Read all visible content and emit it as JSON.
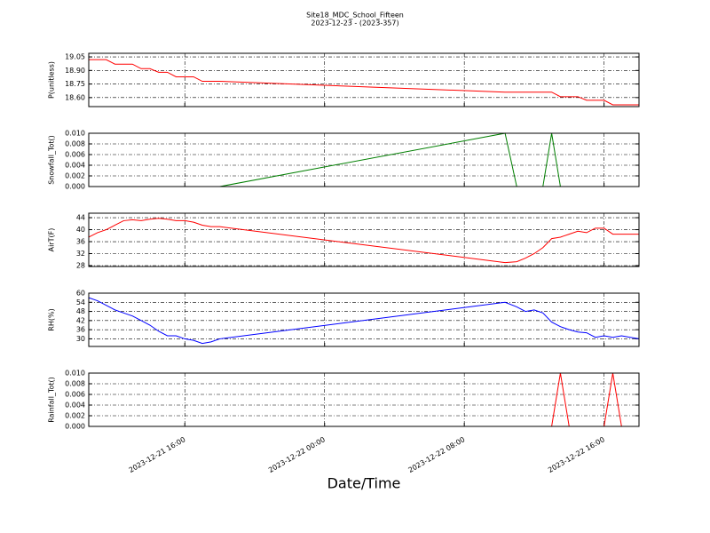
{
  "chart_data": [
    {
      "type": "line",
      "title": "Site18_MDC_School_Fifteen",
      "subtitle": "2023-12-23 - (2023-357)",
      "ylabel": "P(unitless)",
      "x": [
        "2023-12-21 10:30",
        "2023-12-21 11:00",
        "2023-12-21 11:30",
        "2023-12-21 12:00",
        "2023-12-21 12:30",
        "2023-12-21 13:00",
        "2023-12-21 13:30",
        "2023-12-21 14:00",
        "2023-12-21 14:30",
        "2023-12-21 15:00",
        "2023-12-21 15:30",
        "2023-12-21 16:00",
        "2023-12-21 16:30",
        "2023-12-21 17:00",
        "2023-12-21 17:30",
        "2023-12-21 18:00",
        "2023-12-22 10:20",
        "2023-12-22 11:00",
        "2023-12-22 11:30",
        "2023-12-22 12:00",
        "2023-12-22 12:30",
        "2023-12-22 13:00",
        "2023-12-22 13:30",
        "2023-12-22 14:00",
        "2023-12-22 14:30",
        "2023-12-22 15:00",
        "2023-12-22 15:30",
        "2023-12-22 16:00",
        "2023-12-22 16:30",
        "2023-12-22 17:00",
        "2023-12-22 17:30",
        "2023-12-22 18:00"
      ],
      "values": [
        19.02,
        19.02,
        19.02,
        18.97,
        18.97,
        18.97,
        18.92,
        18.92,
        18.88,
        18.88,
        18.83,
        18.83,
        18.83,
        18.78,
        18.78,
        18.78,
        18.66,
        18.66,
        18.66,
        18.66,
        18.66,
        18.66,
        18.61,
        18.61,
        18.61,
        18.57,
        18.57,
        18.57,
        18.52,
        18.52,
        18.52,
        18.52
      ],
      "color": "#ff0000",
      "xlim": [
        "2023-12-21 10:30",
        "2023-12-22 18:00"
      ],
      "xticks": [
        "2023-12-21 16:00",
        "2023-12-22 00:00",
        "2023-12-22 08:00",
        "2023-12-22 16:00"
      ],
      "ylim": [
        18.5,
        19.09
      ],
      "yticks": [
        {
          "value": 18.6,
          "label": "18.60"
        },
        {
          "value": 18.75,
          "label": "18.75"
        },
        {
          "value": 18.9,
          "label": "18.90"
        },
        {
          "value": 19.05,
          "label": "19.05"
        }
      ],
      "grid": true
    },
    {
      "type": "line",
      "ylabel": "Snowfall_Tot()",
      "x": [
        "2023-12-21 10:30",
        "2023-12-21 11:00",
        "2023-12-21 11:30",
        "2023-12-21 12:00",
        "2023-12-21 12:30",
        "2023-12-21 13:00",
        "2023-12-21 13:30",
        "2023-12-21 14:00",
        "2023-12-21 14:30",
        "2023-12-21 15:00",
        "2023-12-21 15:30",
        "2023-12-21 16:00",
        "2023-12-21 16:30",
        "2023-12-21 17:00",
        "2023-12-21 17:30",
        "2023-12-21 18:00",
        "2023-12-22 10:20",
        "2023-12-22 11:00",
        "2023-12-22 11:30",
        "2023-12-22 12:00",
        "2023-12-22 12:30",
        "2023-12-22 13:00",
        "2023-12-22 13:30",
        "2023-12-22 14:00",
        "2023-12-22 14:30",
        "2023-12-22 15:00",
        "2023-12-22 15:30",
        "2023-12-22 16:00",
        "2023-12-22 16:30",
        "2023-12-22 17:00",
        "2023-12-22 17:30",
        "2023-12-22 18:00"
      ],
      "values": [
        0,
        0,
        0,
        0,
        0,
        0,
        0,
        0,
        0,
        0,
        0,
        0,
        0,
        0,
        0,
        0,
        0.01,
        0,
        0,
        0,
        0,
        0.01,
        0,
        0,
        0,
        0,
        0,
        0,
        0,
        0,
        0,
        0
      ],
      "color": "#007f00",
      "xlim": [
        "2023-12-21 10:30",
        "2023-12-22 18:00"
      ],
      "xticks": [
        "2023-12-21 16:00",
        "2023-12-22 00:00",
        "2023-12-22 08:00",
        "2023-12-22 16:00"
      ],
      "ylim": [
        0,
        0.01
      ],
      "yticks": [
        {
          "value": 0,
          "label": "0.000"
        },
        {
          "value": 0.002,
          "label": "0.002"
        },
        {
          "value": 0.004,
          "label": "0.004"
        },
        {
          "value": 0.006,
          "label": "0.006"
        },
        {
          "value": 0.008,
          "label": "0.008"
        },
        {
          "value": 0.01,
          "label": "0.010"
        }
      ],
      "grid": true
    },
    {
      "type": "line",
      "ylabel": "AirT(F)",
      "x": [
        "2023-12-21 10:30",
        "2023-12-21 11:00",
        "2023-12-21 11:30",
        "2023-12-21 12:00",
        "2023-12-21 12:30",
        "2023-12-21 13:00",
        "2023-12-21 13:30",
        "2023-12-21 14:00",
        "2023-12-21 14:30",
        "2023-12-21 15:00",
        "2023-12-21 15:30",
        "2023-12-21 16:00",
        "2023-12-21 16:30",
        "2023-12-21 17:00",
        "2023-12-21 17:30",
        "2023-12-21 18:00",
        "2023-12-22 10:20",
        "2023-12-22 11:00",
        "2023-12-22 11:30",
        "2023-12-22 12:00",
        "2023-12-22 12:30",
        "2023-12-22 13:00",
        "2023-12-22 13:30",
        "2023-12-22 14:00",
        "2023-12-22 14:30",
        "2023-12-22 15:00",
        "2023-12-22 15:30",
        "2023-12-22 16:00",
        "2023-12-22 16:30",
        "2023-12-22 17:00",
        "2023-12-22 17:30",
        "2023-12-22 18:00"
      ],
      "values": [
        37.5,
        39,
        40,
        41.5,
        43,
        43.3,
        43,
        43.5,
        43.8,
        43.5,
        43,
        43,
        42.5,
        41.5,
        41,
        41,
        29,
        29.3,
        30.5,
        32,
        34,
        37,
        37.5,
        38.5,
        39.5,
        39,
        40.5,
        40.5,
        38.5,
        38.5,
        38.5,
        38.5
      ],
      "color": "#ff0000",
      "xlim": [
        "2023-12-21 10:30",
        "2023-12-22 18:00"
      ],
      "xticks": [
        "2023-12-21 16:00",
        "2023-12-22 00:00",
        "2023-12-22 08:00",
        "2023-12-22 16:00"
      ],
      "ylim": [
        27.7,
        45.5
      ],
      "yticks": [
        28,
        32,
        36,
        40,
        44
      ],
      "grid": true
    },
    {
      "type": "line",
      "ylabel": "RH(%)",
      "x": [
        "2023-12-21 10:30",
        "2023-12-21 11:00",
        "2023-12-21 11:30",
        "2023-12-21 12:00",
        "2023-12-21 12:30",
        "2023-12-21 13:00",
        "2023-12-21 13:30",
        "2023-12-21 14:00",
        "2023-12-21 14:30",
        "2023-12-21 15:00",
        "2023-12-21 15:30",
        "2023-12-21 16:00",
        "2023-12-21 16:30",
        "2023-12-21 17:00",
        "2023-12-21 17:30",
        "2023-12-21 18:00",
        "2023-12-22 10:20",
        "2023-12-22 11:00",
        "2023-12-22 11:30",
        "2023-12-22 12:00",
        "2023-12-22 12:30",
        "2023-12-22 13:00",
        "2023-12-22 13:30",
        "2023-12-22 14:00",
        "2023-12-22 14:30",
        "2023-12-22 15:00",
        "2023-12-22 15:30",
        "2023-12-22 16:00",
        "2023-12-22 16:30",
        "2023-12-22 17:00",
        "2023-12-22 17:30",
        "2023-12-22 18:00"
      ],
      "values": [
        57,
        55,
        52,
        49,
        47,
        45,
        42,
        39,
        35,
        32,
        32,
        30,
        29,
        27,
        28,
        30,
        54,
        51,
        48,
        49,
        47,
        41,
        38,
        36,
        34.5,
        34,
        31,
        32,
        31,
        32,
        31,
        30
      ],
      "color": "#0000ff",
      "xlim": [
        "2023-12-21 10:30",
        "2023-12-22 18:00"
      ],
      "xticks": [
        "2023-12-21 16:00",
        "2023-12-22 00:00",
        "2023-12-22 08:00",
        "2023-12-22 16:00"
      ],
      "ylim": [
        25,
        60
      ],
      "yticks": [
        30,
        36,
        42,
        48,
        54,
        60
      ],
      "grid": true
    },
    {
      "type": "line",
      "ylabel": "Rainfall_Tot()",
      "xlabel": "Date/Time",
      "x": [
        "2023-12-21 10:30",
        "2023-12-21 11:00",
        "2023-12-21 11:30",
        "2023-12-21 12:00",
        "2023-12-21 12:30",
        "2023-12-21 13:00",
        "2023-12-21 13:30",
        "2023-12-21 14:00",
        "2023-12-21 14:30",
        "2023-12-21 15:00",
        "2023-12-21 15:30",
        "2023-12-21 16:00",
        "2023-12-21 16:30",
        "2023-12-21 17:00",
        "2023-12-21 17:30",
        "2023-12-21 18:00",
        "2023-12-22 10:20",
        "2023-12-22 11:00",
        "2023-12-22 11:30",
        "2023-12-22 12:00",
        "2023-12-22 12:30",
        "2023-12-22 13:00",
        "2023-12-22 13:30",
        "2023-12-22 14:00",
        "2023-12-22 14:30",
        "2023-12-22 15:00",
        "2023-12-22 15:30",
        "2023-12-22 16:00",
        "2023-12-22 16:30",
        "2023-12-22 17:00",
        "2023-12-22 17:30",
        "2023-12-22 18:00"
      ],
      "values": [
        0,
        0,
        0,
        0,
        0,
        0,
        0,
        0,
        0,
        0,
        0,
        0,
        0,
        0,
        0,
        0,
        0,
        0,
        0,
        0,
        0,
        0,
        0.01,
        0,
        0,
        0,
        0,
        0,
        0.01,
        0,
        0,
        0
      ],
      "color": "#ff0000",
      "xlim": [
        "2023-12-21 10:30",
        "2023-12-22 18:00"
      ],
      "xticks": [
        "2023-12-21 16:00",
        "2023-12-22 00:00",
        "2023-12-22 08:00",
        "2023-12-22 16:00"
      ],
      "ylim": [
        0,
        0.01
      ],
      "yticks": [
        {
          "value": 0,
          "label": "0.000"
        },
        {
          "value": 0.002,
          "label": "0.002"
        },
        {
          "value": 0.004,
          "label": "0.004"
        },
        {
          "value": 0.006,
          "label": "0.006"
        },
        {
          "value": 0.008,
          "label": "0.008"
        },
        {
          "value": 0.01,
          "label": "0.010"
        }
      ],
      "grid": true
    }
  ]
}
